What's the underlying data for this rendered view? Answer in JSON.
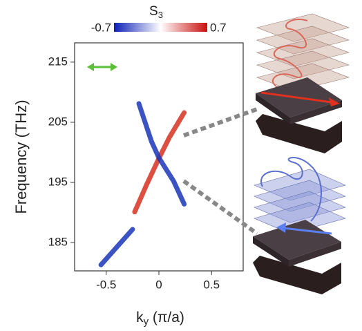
{
  "chart_data": {
    "type": "line",
    "colorbar": {
      "title": {
        "main": "S",
        "sub": "3"
      },
      "clim": [
        -0.7,
        0.7
      ],
      "cticks": [
        -0.7,
        0.7
      ],
      "colors": [
        "#0a1fb5",
        "#ffffff",
        "#c8100a"
      ]
    },
    "x_label": {
      "main": "k",
      "sub": "y",
      "rest": " (π/a)"
    },
    "y_label": "Frequency (THz)",
    "xlim": [
      -0.8,
      0.8
    ],
    "xticks": [
      -0.5,
      0,
      0.5
    ],
    "ylim": [
      180.3,
      218.2
    ],
    "yticks": [
      185,
      195,
      205,
      215
    ],
    "series": [
      {
        "color": "#d7301f",
        "x": [
          -0.23,
          -0.12,
          0,
          0.1,
          0.24
        ],
        "values": [
          190.1,
          194.5,
          199,
          202.5,
          206.6
        ]
      },
      {
        "color": "#1a35b8",
        "x": [
          -0.19,
          -0.07,
          0,
          0.14,
          0.24,
          null,
          -0.25,
          -0.55
        ],
        "values": [
          208.1,
          201.8,
          199.1,
          195.2,
          191.4,
          null,
          187.2,
          181.3
        ]
      }
    ]
  }
}
